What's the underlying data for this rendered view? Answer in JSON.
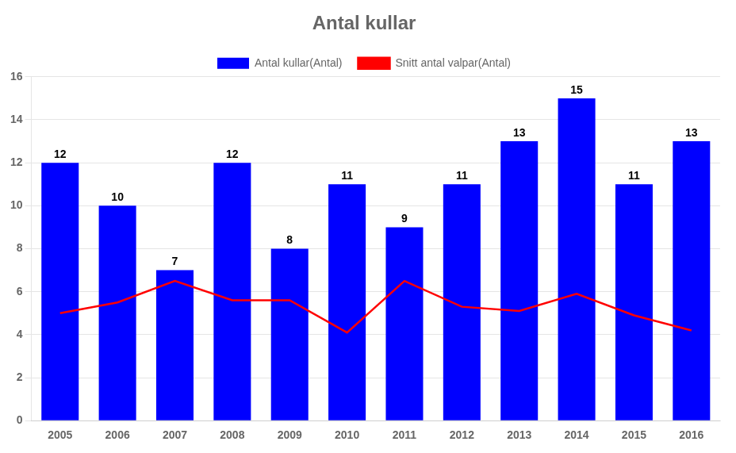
{
  "chart_data": {
    "type": "bar",
    "title": "Antal kullar",
    "categories": [
      "2005",
      "2006",
      "2007",
      "2008",
      "2009",
      "2010",
      "2011",
      "2012",
      "2013",
      "2014",
      "2015",
      "2016"
    ],
    "series": [
      {
        "name": "Antal kullar(Antal)",
        "type": "bar",
        "color": "#0000FF",
        "data_labels": true,
        "values": [
          12,
          10,
          7,
          12,
          8,
          11,
          9,
          11,
          13,
          15,
          11,
          13
        ]
      },
      {
        "name": "Snitt antal valpar(Antal)",
        "type": "line",
        "color": "#FF0000",
        "values": [
          5.0,
          5.5,
          6.5,
          5.6,
          5.6,
          4.1,
          6.5,
          5.3,
          5.1,
          5.9,
          4.9,
          4.2
        ]
      }
    ],
    "ylim": [
      0,
      16
    ],
    "yticks": [
      0,
      2,
      4,
      6,
      8,
      10,
      12,
      14,
      16
    ],
    "grid": true,
    "legend": "top"
  }
}
